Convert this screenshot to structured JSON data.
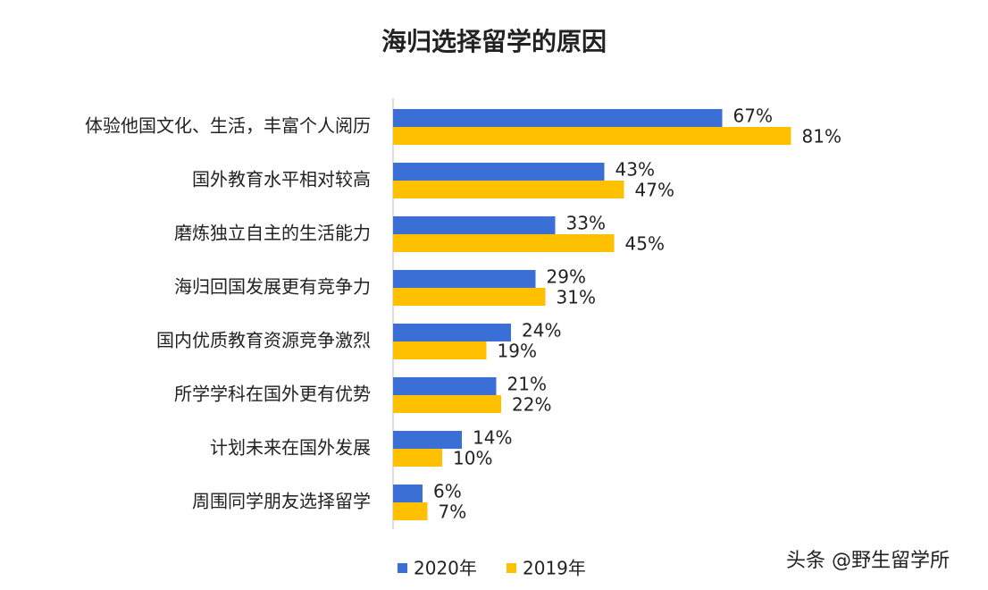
{
  "chart_data": {
    "type": "barh",
    "title": "海归选择留学的原因",
    "categories": [
      "体验他国文化、生活，丰富个人阅历",
      "国外教育水平相对较高",
      "磨炼独立自主的生活能力",
      "海归回国发展更有竞争力",
      "国内优质教育资源竞争激烈",
      "所学学科在国外更有优势",
      "计划未来在国外发展",
      "周围同学朋友选择留学"
    ],
    "series": [
      {
        "name": "2020年",
        "color": "#3b6fd6",
        "values": [
          67,
          43,
          33,
          29,
          24,
          21,
          14,
          6
        ],
        "value_labels": [
          "67%",
          "43%",
          "33%",
          "29%",
          "24%",
          "21%",
          "14%",
          "6%"
        ]
      },
      {
        "name": "2019年",
        "color": "#ffc000",
        "values": [
          81,
          47,
          45,
          31,
          19,
          22,
          10,
          7
        ],
        "value_labels": [
          "81%",
          "47%",
          "45%",
          "31%",
          "19%",
          "22%",
          "10%",
          "7%"
        ]
      }
    ],
    "legend": "bottom",
    "watermark": "头条 @野生留学所"
  }
}
